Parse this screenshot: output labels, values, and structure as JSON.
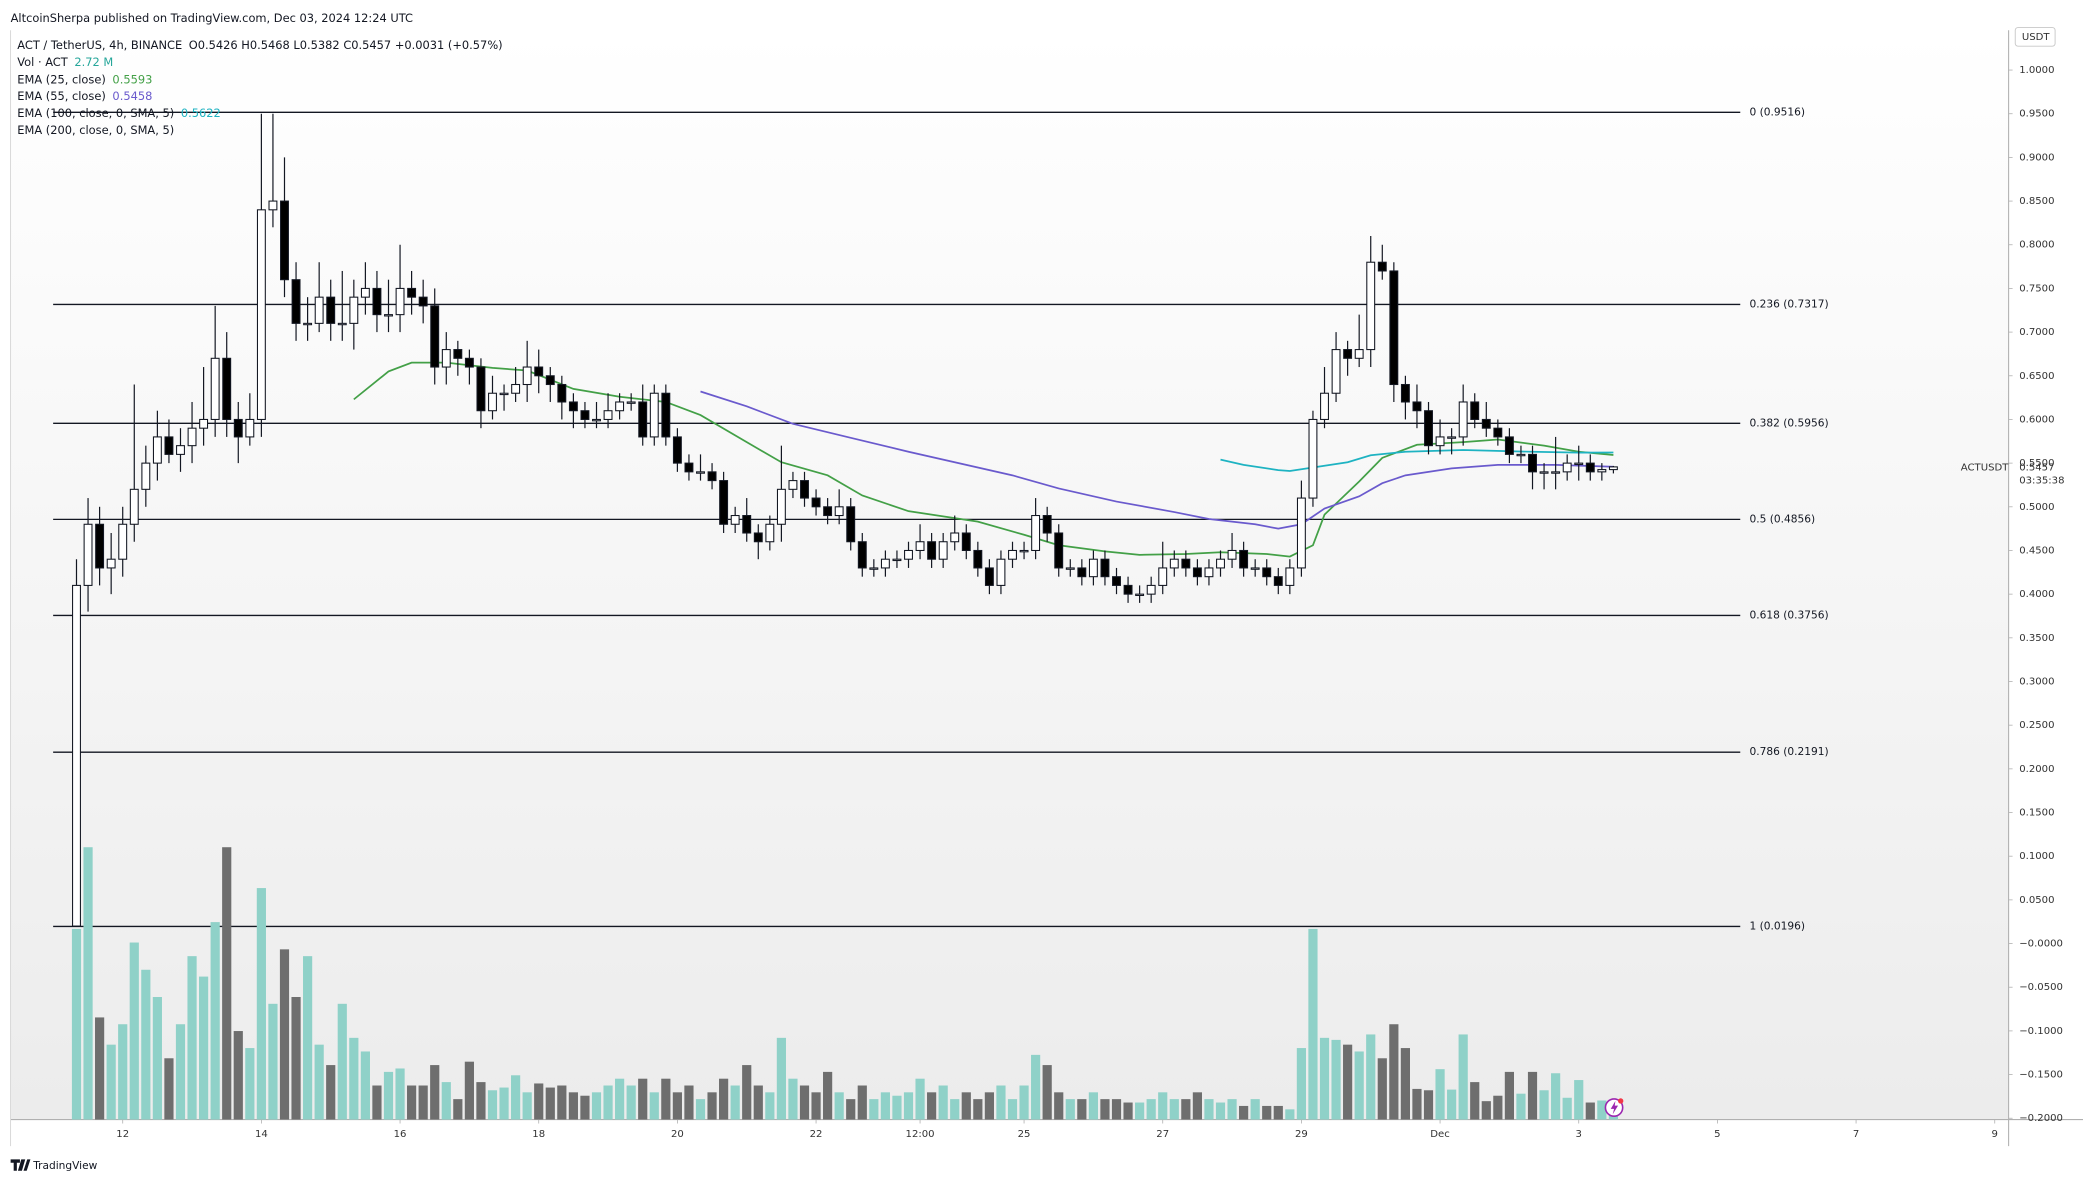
{
  "header": {
    "publisher": "AltcoinSherpa published on TradingView.com, Dec 03, 2024 12:24 UTC",
    "footer": "TradingView"
  },
  "chart_data": {
    "type": "candlestick",
    "title": "ACT / TetherUS, 4h, BINANCE",
    "ohlc_label": "O0.5426 H0.5468 L0.5382 C0.5457 +0.0031 (+0.57%)",
    "volume_label": "Vol · ACT",
    "volume_value_label": "2.72 M",
    "symbol": "ACTUSDT",
    "currency": "USDT",
    "last_price_label": "0.5457",
    "countdown": "03:35:38",
    "up_color": "#ffffff",
    "down_color": "#000000",
    "volume_up_color": "#8fd1c8",
    "volume_down_color": "#6e6e6e",
    "grid": false,
    "open": [
      0.02,
      0.41,
      0.48,
      0.43,
      0.44,
      0.48,
      0.52,
      0.55,
      0.58,
      0.56,
      0.57,
      0.59,
      0.6,
      0.67,
      0.6,
      0.58,
      0.6,
      0.84,
      0.85,
      0.76,
      0.71,
      0.71,
      0.74,
      0.71,
      0.71,
      0.74,
      0.75,
      0.72,
      0.72,
      0.75,
      0.74,
      0.73,
      0.66,
      0.68,
      0.67,
      0.66,
      0.61,
      0.63,
      0.63,
      0.64,
      0.66,
      0.65,
      0.64,
      0.62,
      0.61,
      0.6,
      0.6,
      0.61,
      0.62,
      0.62,
      0.58,
      0.63,
      0.58,
      0.55,
      0.54,
      0.54,
      0.53,
      0.48,
      0.49,
      0.47,
      0.46,
      0.48,
      0.52,
      0.53,
      0.51,
      0.5,
      0.49,
      0.5,
      0.46,
      0.43,
      0.43,
      0.44,
      0.44,
      0.45,
      0.46,
      0.44,
      0.46,
      0.47,
      0.45,
      0.43,
      0.41,
      0.44,
      0.45,
      0.45,
      0.49,
      0.47,
      0.43,
      0.43,
      0.42,
      0.44,
      0.42,
      0.41,
      0.4,
      0.4,
      0.41,
      0.43,
      0.44,
      0.43,
      0.42,
      0.43,
      0.44,
      0.45,
      0.43,
      0.43,
      0.42,
      0.41,
      0.43,
      0.51,
      0.6,
      0.63,
      0.68,
      0.67,
      0.68,
      0.78,
      0.77,
      0.64,
      0.62,
      0.61,
      0.57,
      0.58,
      0.58,
      0.62,
      0.6,
      0.59,
      0.58,
      0.56,
      0.56,
      0.54,
      0.54,
      0.54,
      0.55,
      0.55,
      0.54,
      0.5426
    ],
    "high": [
      0.44,
      0.51,
      0.5,
      0.47,
      0.5,
      0.64,
      0.57,
      0.61,
      0.6,
      0.59,
      0.62,
      0.66,
      0.73,
      0.7,
      0.62,
      0.63,
      0.95,
      0.95,
      0.9,
      0.78,
      0.74,
      0.78,
      0.76,
      0.77,
      0.76,
      0.78,
      0.77,
      0.76,
      0.8,
      0.77,
      0.76,
      0.75,
      0.7,
      0.69,
      0.68,
      0.67,
      0.65,
      0.64,
      0.66,
      0.69,
      0.68,
      0.66,
      0.65,
      0.63,
      0.62,
      0.62,
      0.63,
      0.63,
      0.63,
      0.64,
      0.64,
      0.64,
      0.59,
      0.56,
      0.56,
      0.55,
      0.54,
      0.5,
      0.51,
      0.48,
      0.49,
      0.57,
      0.54,
      0.54,
      0.52,
      0.51,
      0.52,
      0.51,
      0.47,
      0.44,
      0.45,
      0.45,
      0.46,
      0.48,
      0.47,
      0.47,
      0.49,
      0.48,
      0.46,
      0.44,
      0.45,
      0.46,
      0.46,
      0.51,
      0.5,
      0.48,
      0.44,
      0.44,
      0.45,
      0.45,
      0.43,
      0.42,
      0.41,
      0.42,
      0.46,
      0.45,
      0.45,
      0.44,
      0.44,
      0.45,
      0.47,
      0.46,
      0.44,
      0.44,
      0.43,
      0.44,
      0.53,
      0.61,
      0.66,
      0.7,
      0.69,
      0.72,
      0.81,
      0.8,
      0.78,
      0.65,
      0.64,
      0.62,
      0.6,
      0.59,
      0.64,
      0.63,
      0.62,
      0.6,
      0.59,
      0.57,
      0.57,
      0.55,
      0.58,
      0.56,
      0.57,
      0.56,
      0.55,
      0.5468
    ],
    "low": [
      0.0196,
      0.38,
      0.41,
      0.4,
      0.42,
      0.46,
      0.5,
      0.53,
      0.55,
      0.54,
      0.55,
      0.57,
      0.58,
      0.58,
      0.55,
      0.57,
      0.58,
      0.82,
      0.74,
      0.69,
      0.69,
      0.7,
      0.69,
      0.69,
      0.68,
      0.72,
      0.7,
      0.7,
      0.7,
      0.72,
      0.71,
      0.64,
      0.64,
      0.65,
      0.64,
      0.59,
      0.6,
      0.61,
      0.62,
      0.62,
      0.63,
      0.62,
      0.6,
      0.59,
      0.59,
      0.59,
      0.59,
      0.6,
      0.61,
      0.57,
      0.57,
      0.57,
      0.54,
      0.53,
      0.53,
      0.52,
      0.47,
      0.47,
      0.46,
      0.44,
      0.45,
      0.46,
      0.51,
      0.5,
      0.49,
      0.48,
      0.48,
      0.45,
      0.42,
      0.42,
      0.42,
      0.43,
      0.43,
      0.44,
      0.43,
      0.43,
      0.45,
      0.44,
      0.42,
      0.4,
      0.4,
      0.43,
      0.44,
      0.44,
      0.46,
      0.42,
      0.42,
      0.41,
      0.41,
      0.41,
      0.4,
      0.39,
      0.39,
      0.39,
      0.4,
      0.42,
      0.42,
      0.41,
      0.41,
      0.42,
      0.43,
      0.42,
      0.42,
      0.41,
      0.4,
      0.4,
      0.42,
      0.5,
      0.59,
      0.62,
      0.65,
      0.66,
      0.66,
      0.76,
      0.62,
      0.6,
      0.59,
      0.56,
      0.56,
      0.56,
      0.57,
      0.59,
      0.58,
      0.57,
      0.55,
      0.55,
      0.52,
      0.52,
      0.52,
      0.53,
      0.53,
      0.53,
      0.53,
      0.5382
    ],
    "close": [
      0.41,
      0.48,
      0.43,
      0.44,
      0.48,
      0.52,
      0.55,
      0.58,
      0.56,
      0.57,
      0.59,
      0.6,
      0.67,
      0.6,
      0.58,
      0.6,
      0.84,
      0.85,
      0.76,
      0.71,
      0.71,
      0.74,
      0.71,
      0.71,
      0.74,
      0.75,
      0.72,
      0.72,
      0.75,
      0.74,
      0.73,
      0.66,
      0.68,
      0.67,
      0.66,
      0.61,
      0.63,
      0.63,
      0.64,
      0.66,
      0.65,
      0.64,
      0.62,
      0.61,
      0.6,
      0.6,
      0.61,
      0.62,
      0.62,
      0.58,
      0.63,
      0.58,
      0.55,
      0.54,
      0.54,
      0.53,
      0.48,
      0.49,
      0.47,
      0.46,
      0.48,
      0.52,
      0.53,
      0.51,
      0.5,
      0.49,
      0.5,
      0.46,
      0.43,
      0.43,
      0.44,
      0.44,
      0.45,
      0.46,
      0.44,
      0.46,
      0.47,
      0.45,
      0.43,
      0.41,
      0.44,
      0.45,
      0.45,
      0.49,
      0.47,
      0.43,
      0.43,
      0.42,
      0.44,
      0.42,
      0.41,
      0.4,
      0.4,
      0.41,
      0.43,
      0.44,
      0.43,
      0.42,
      0.43,
      0.44,
      0.45,
      0.43,
      0.43,
      0.42,
      0.41,
      0.43,
      0.51,
      0.6,
      0.63,
      0.68,
      0.67,
      0.68,
      0.78,
      0.77,
      0.64,
      0.62,
      0.61,
      0.57,
      0.58,
      0.58,
      0.62,
      0.6,
      0.59,
      0.58,
      0.56,
      0.56,
      0.54,
      0.54,
      0.54,
      0.55,
      0.55,
      0.54,
      0.5426,
      0.5457
    ],
    "volume": [
      28,
      40,
      15,
      11,
      14,
      26,
      22,
      18,
      9,
      14,
      24,
      21,
      29,
      40,
      13,
      10.5,
      34,
      17,
      25,
      18,
      24,
      11,
      8,
      17,
      12,
      10,
      5,
      7,
      7.5,
      5,
      5,
      8,
      5.5,
      3,
      8.5,
      5.5,
      4.3,
      4.7,
      6.5,
      4,
      5.3,
      4.7,
      5,
      4,
      3.5,
      4,
      5,
      6,
      5,
      6,
      4,
      6,
      4,
      5,
      3,
      4,
      6,
      5,
      8,
      5,
      4,
      12,
      6,
      5,
      4,
      7,
      4,
      3,
      5,
      3,
      4,
      3.5,
      4,
      6,
      4,
      5,
      3,
      4,
      3,
      4,
      5,
      3,
      5,
      9.5,
      8,
      4,
      3,
      3,
      4,
      3,
      3,
      2.5,
      2.5,
      3,
      4,
      3,
      3,
      4,
      3,
      2.5,
      3,
      2,
      3,
      2,
      2,
      1.5,
      10.5,
      28,
      12,
      11.7,
      11,
      10,
      12.5,
      9,
      14,
      10.5,
      4.5,
      4.3,
      7.4,
      4.4,
      12.5,
      5.5,
      2.7,
      3.5,
      7,
      3.8,
      7,
      4.3,
      6.8,
      3.2,
      5.8,
      2.5,
      2.8,
      2.72
    ],
    "indicators": [
      {
        "name": "EMA (25, close)",
        "value_label": "0.5593",
        "color": "#43a047",
        "x": [
          24,
          27,
          29,
          32,
          36,
          39,
          43,
          47,
          51,
          54,
          58,
          61,
          65,
          68,
          72,
          75,
          78,
          82,
          85,
          89,
          92,
          96,
          99,
          103,
          105,
          107,
          108,
          111,
          113,
          116,
          120,
          123,
          127,
          130,
          133
        ],
        "values": [
          0.623,
          0.655,
          0.665,
          0.665,
          0.659,
          0.656,
          0.635,
          0.626,
          0.62,
          0.605,
          0.574,
          0.551,
          0.536,
          0.513,
          0.495,
          0.489,
          0.483,
          0.468,
          0.456,
          0.449,
          0.445,
          0.446,
          0.448,
          0.446,
          0.443,
          0.456,
          0.491,
          0.529,
          0.556,
          0.571,
          0.574,
          0.577,
          0.57,
          0.563,
          0.5593
        ]
      },
      {
        "name": "EMA (55, close)",
        "value_label": "0.5458",
        "color": "#6a5acd",
        "x": [
          54,
          58,
          62,
          67,
          72,
          76,
          81,
          85,
          90,
          95,
          98,
          102,
          104,
          106,
          108,
          111,
          113,
          115,
          119,
          123,
          128,
          133
        ],
        "values": [
          0.632,
          0.615,
          0.595,
          0.579,
          0.563,
          0.551,
          0.536,
          0.521,
          0.506,
          0.494,
          0.486,
          0.48,
          0.475,
          0.48,
          0.498,
          0.512,
          0.527,
          0.536,
          0.544,
          0.548,
          0.548,
          0.5458
        ]
      },
      {
        "name": "EMA (100, close, 0, SMA, 5)",
        "value_label": "0.5622",
        "color": "#1eb3c2",
        "x": [
          99,
          101,
          104,
          105,
          107,
          110,
          112,
          115,
          120,
          126,
          130,
          133
        ],
        "values": [
          0.554,
          0.548,
          0.542,
          0.541,
          0.545,
          0.551,
          0.559,
          0.563,
          0.565,
          0.563,
          0.562,
          0.5622
        ]
      },
      {
        "name": "EMA (200, close, 0, SMA, 5)"
      }
    ],
    "fib_levels": [
      {
        "label": "0 (0.9516)",
        "value": 0.9516
      },
      {
        "label": "0.236 (0.7317)",
        "value": 0.7317
      },
      {
        "label": "0.382 (0.5956)",
        "value": 0.5956
      },
      {
        "label": "0.5 (0.4856)",
        "value": 0.4856
      },
      {
        "label": "0.618 (0.3756)",
        "value": 0.3756
      },
      {
        "label": "0.786 (0.2191)",
        "value": 0.2191
      },
      {
        "label": "1 (0.0196)",
        "value": 0.0196
      }
    ],
    "xlim": [
      -5.7,
      167.2
    ],
    "ylim": [
      -0.2015,
      1.0456
    ],
    "xticks": [
      {
        "value": 4,
        "label": "12"
      },
      {
        "value": 16,
        "label": "14"
      },
      {
        "value": 28,
        "label": "16"
      },
      {
        "value": 40,
        "label": "18"
      },
      {
        "value": 52,
        "label": "20"
      },
      {
        "value": 64,
        "label": "22"
      },
      {
        "value": 73,
        "label": "12:00"
      },
      {
        "value": 82,
        "label": "25"
      },
      {
        "value": 94,
        "label": "27"
      },
      {
        "value": 106,
        "label": "29"
      },
      {
        "value": 118,
        "label": "Dec"
      },
      {
        "value": 130,
        "label": "3"
      },
      {
        "value": 142,
        "label": "5"
      },
      {
        "value": 154,
        "label": "7"
      },
      {
        "value": 166,
        "label": "9"
      }
    ],
    "yticks": [
      {
        "value": 1.0,
        "label": "1.0000"
      },
      {
        "value": 0.95,
        "label": "0.9500"
      },
      {
        "value": 0.9,
        "label": "0.9000"
      },
      {
        "value": 0.85,
        "label": "0.8500"
      },
      {
        "value": 0.8,
        "label": "0.8000"
      },
      {
        "value": 0.75,
        "label": "0.7500"
      },
      {
        "value": 0.7,
        "label": "0.7000"
      },
      {
        "value": 0.65,
        "label": "0.6500"
      },
      {
        "value": 0.6,
        "label": "0.6000"
      },
      {
        "value": 0.55,
        "label": "0.5500"
      },
      {
        "value": 0.5,
        "label": "0.5000"
      },
      {
        "value": 0.45,
        "label": "0.4500"
      },
      {
        "value": 0.4,
        "label": "0.4000"
      },
      {
        "value": 0.35,
        "label": "0.3500"
      },
      {
        "value": 0.3,
        "label": "0.3000"
      },
      {
        "value": 0.25,
        "label": "0.2500"
      },
      {
        "value": 0.2,
        "label": "0.2000"
      },
      {
        "value": 0.15,
        "label": "0.1500"
      },
      {
        "value": 0.1,
        "label": "0.1000"
      },
      {
        "value": 0.05,
        "label": "0.0500"
      },
      {
        "value": 0,
        "label": "−0.0000"
      },
      {
        "value": -0.05,
        "label": "−0.0500"
      },
      {
        "value": -0.1,
        "label": "−0.1000"
      },
      {
        "value": -0.15,
        "label": "−0.1500"
      },
      {
        "value": -0.2,
        "label": "−0.2000"
      }
    ]
  }
}
